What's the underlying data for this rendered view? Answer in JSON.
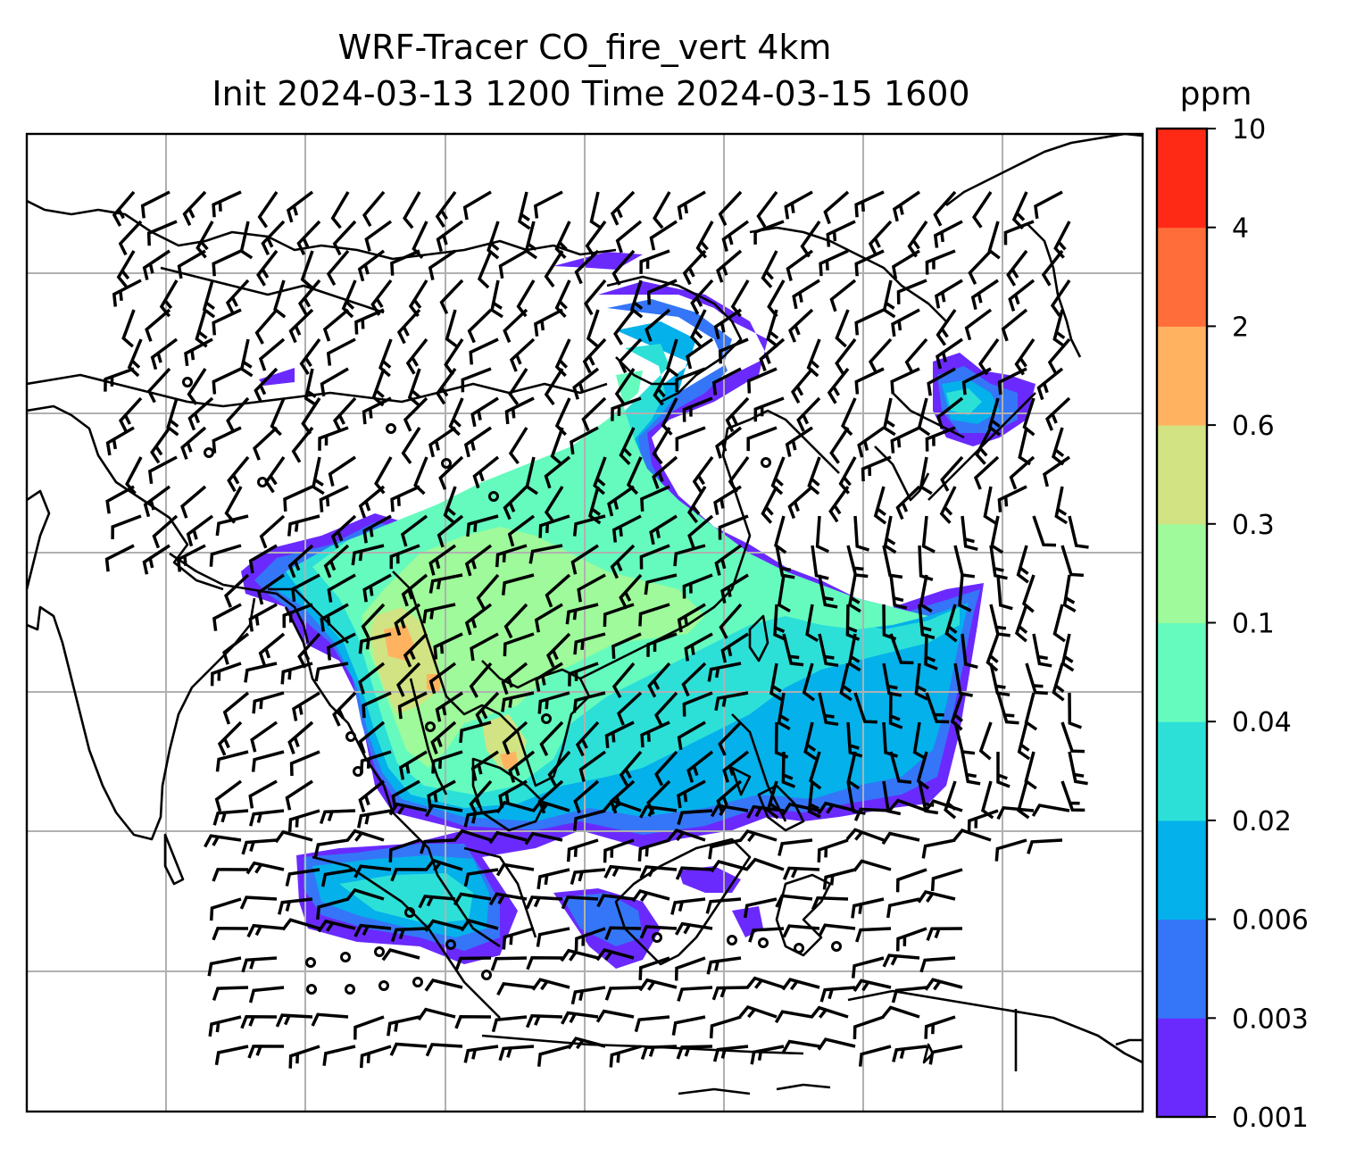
{
  "title": {
    "line1": "WRF-Tracer CO_fire_vert 4km",
    "line2": "Init 2024-03-13 1200 Time 2024-03-15 1600"
  },
  "colorbar": {
    "unit": "ppm",
    "levels": [
      "0.001",
      "0.003",
      "0.006",
      "0.02",
      "0.04",
      "0.1",
      "0.3",
      "0.6",
      "2",
      "4",
      "10"
    ],
    "colors": [
      "#6a2afe",
      "#3476f7",
      "#04b1ea",
      "#2ce0d8",
      "#65fbbe",
      "#9efa9a",
      "#d2e383",
      "#ffb360",
      "#ff6e3a",
      "#ff2a16"
    ]
  },
  "map": {
    "field": "CO_fire_vert",
    "projection": "lat-lon",
    "gridlines": true,
    "coastline_color": "#000000",
    "wind_barbs": true
  }
}
